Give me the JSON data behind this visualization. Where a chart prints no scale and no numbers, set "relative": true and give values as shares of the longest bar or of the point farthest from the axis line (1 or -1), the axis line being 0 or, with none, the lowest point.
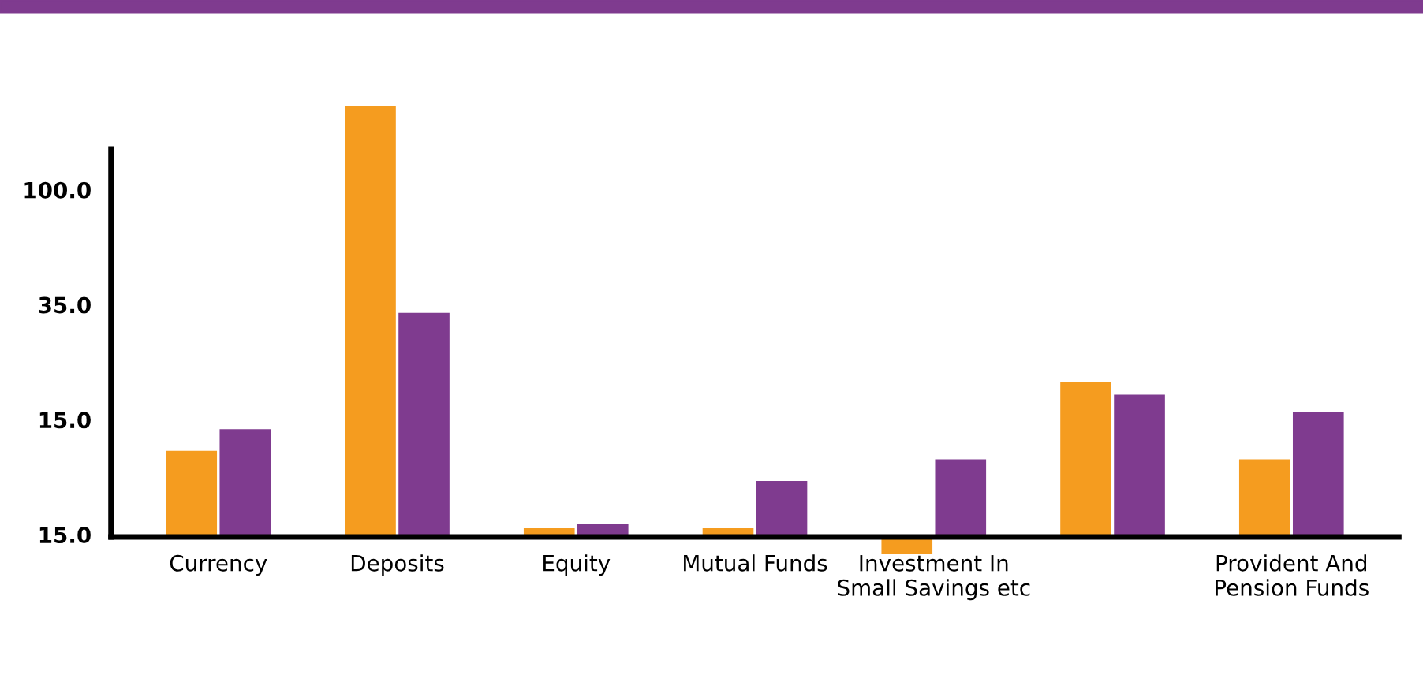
{
  "chart_data": {
    "type": "bar",
    "relative": true,
    "categories": [
      "Currency",
      "Deposits",
      "Equity",
      "Mutual Funds",
      "Investment In\nSmall Savings etc",
      null,
      "Provident And\nPension Funds"
    ],
    "series": [
      {
        "color": "#f59c1f",
        "values": [
          0.2,
          1,
          0.02,
          0.02,
          -0.04,
          0.36,
          0.18
        ]
      },
      {
        "color": "#7f3b8f",
        "values": [
          0.25,
          0.52,
          0.03,
          0.13,
          0.18,
          0.33,
          0.29
        ]
      }
    ],
    "annotations": [
      "100.0",
      "35.0",
      "15.0",
      "15.0"
    ],
    "grid": false,
    "legend": false
  }
}
